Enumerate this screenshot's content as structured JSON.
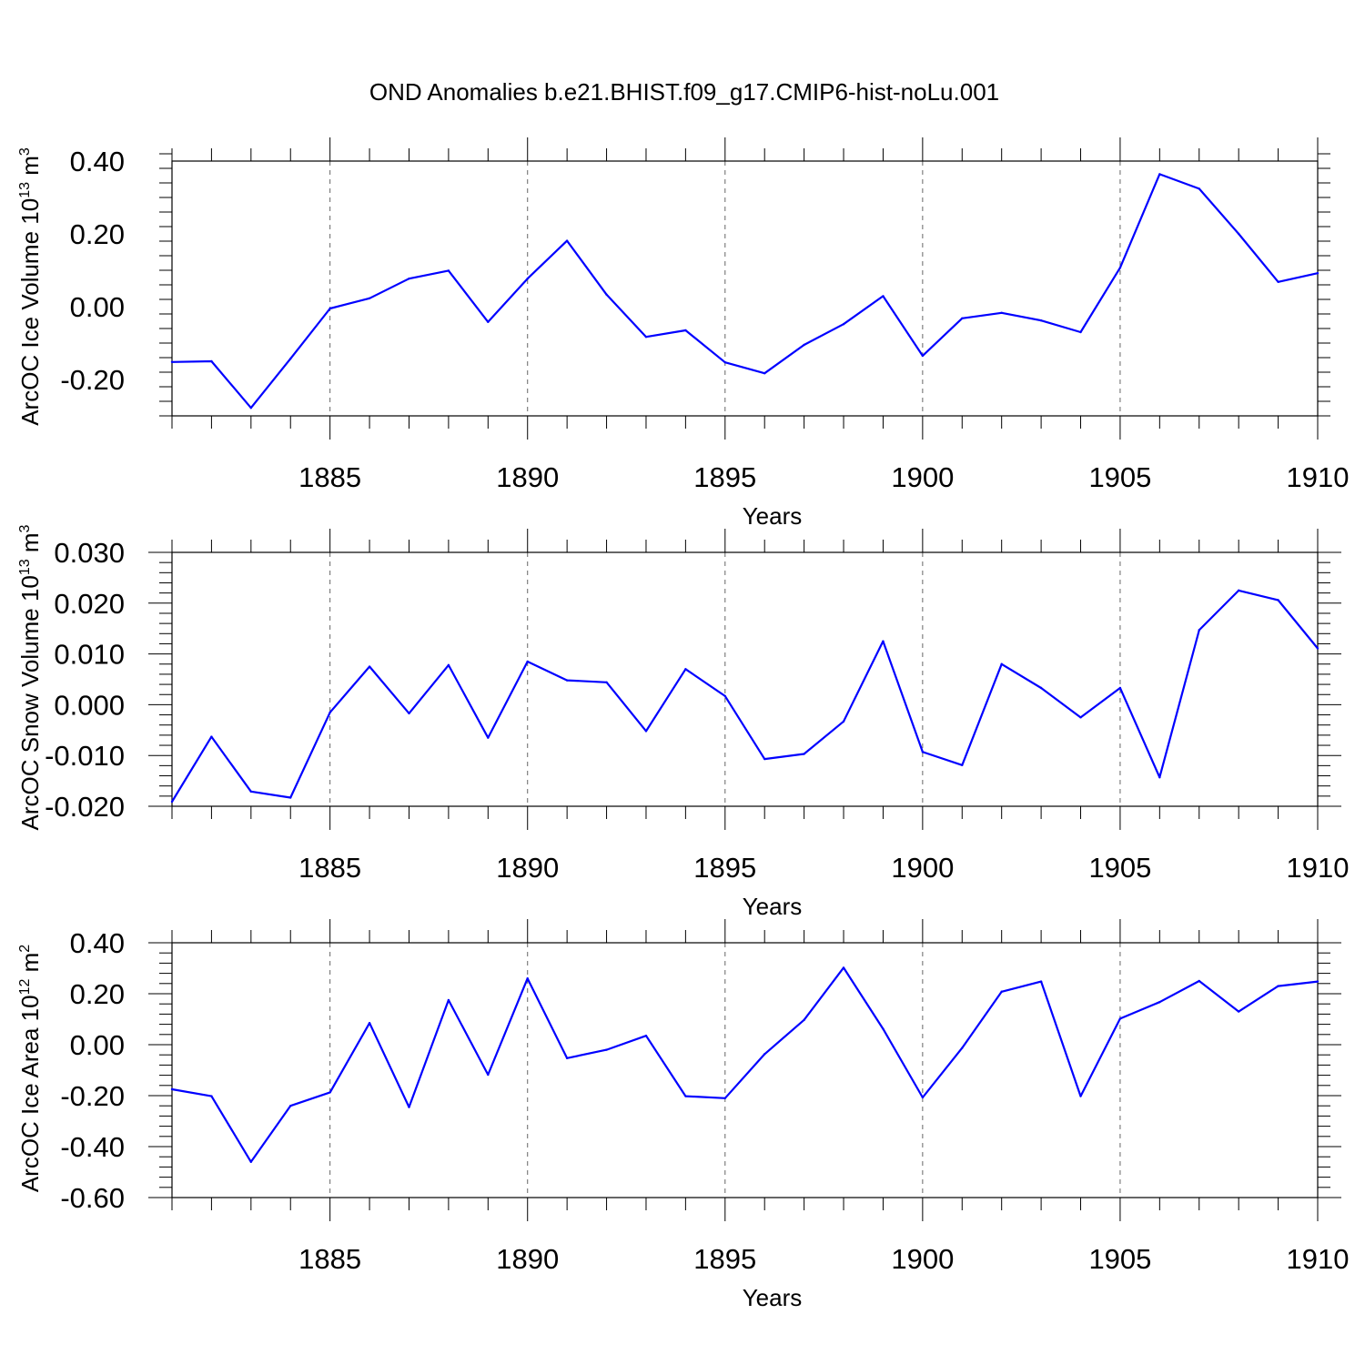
{
  "title": "OND Anomalies b.e21.BHIST.f09_g17.CMIP6-hist-noLu.001",
  "colors": {
    "line": "#0000ff",
    "axis": "#000000",
    "grid": "#666666"
  },
  "chart_data": [
    {
      "type": "line",
      "ylabel": "ArcOC Ice Volume 10",
      "ylabel_exp": "13",
      "ylabel_unit": " m",
      "ylabel_unit_exp": "3",
      "xlabel": "Years",
      "xlim": [
        1881,
        1910
      ],
      "ylim": [
        -0.3,
        0.4
      ],
      "yticks": [
        -0.2,
        0.0,
        0.2,
        0.4
      ],
      "ytick_labels": [
        "-0.20",
        "0.00",
        "0.20",
        "0.40"
      ],
      "xticks": [
        1885,
        1890,
        1895,
        1900,
        1905,
        1910
      ],
      "xtick_labels": [
        "1885",
        "1890",
        "1895",
        "1900",
        "1905",
        "1910"
      ],
      "x": [
        1881,
        1882,
        1883,
        1884,
        1885,
        1886,
        1887,
        1888,
        1889,
        1890,
        1891,
        1892,
        1893,
        1894,
        1895,
        1896,
        1897,
        1898,
        1899,
        1900,
        1901,
        1902,
        1903,
        1904,
        1905,
        1906,
        1907,
        1908,
        1909,
        1910
      ],
      "values": [
        -0.152,
        -0.15,
        -0.278,
        -0.143,
        -0.005,
        0.023,
        0.077,
        0.099,
        -0.042,
        0.077,
        0.181,
        0.033,
        -0.083,
        -0.065,
        -0.153,
        -0.183,
        -0.105,
        -0.048,
        0.029,
        -0.135,
        -0.032,
        -0.017,
        -0.038,
        -0.07,
        0.107,
        0.364,
        0.324,
        0.2,
        0.068,
        0.092
      ],
      "grid": "vertical-dashed"
    },
    {
      "type": "line",
      "ylabel": "ArcOC Snow Volume 10",
      "ylabel_exp": "13",
      "ylabel_unit": " m",
      "ylabel_unit_exp": "3",
      "xlabel": "Years",
      "xlim": [
        1881,
        1910
      ],
      "ylim": [
        -0.02,
        0.03
      ],
      "yticks": [
        -0.02,
        -0.01,
        0.0,
        0.01,
        0.02,
        0.03
      ],
      "ytick_labels": [
        "-0.020",
        "-0.010",
        "0.000",
        "0.010",
        "0.020",
        "0.030"
      ],
      "xticks": [
        1885,
        1890,
        1895,
        1900,
        1905,
        1910
      ],
      "xtick_labels": [
        "1885",
        "1890",
        "1895",
        "1900",
        "1905",
        "1910"
      ],
      "x": [
        1881,
        1882,
        1883,
        1884,
        1885,
        1886,
        1887,
        1888,
        1889,
        1890,
        1891,
        1892,
        1893,
        1894,
        1895,
        1896,
        1897,
        1898,
        1899,
        1900,
        1901,
        1902,
        1903,
        1904,
        1905,
        1906,
        1907,
        1908,
        1909,
        1910
      ],
      "values": [
        -0.0191,
        -0.0063,
        -0.0171,
        -0.0183,
        -0.0015,
        0.0075,
        -0.0017,
        0.0078,
        -0.0065,
        0.0085,
        0.0048,
        0.0044,
        -0.0052,
        0.007,
        0.0017,
        -0.0107,
        -0.0097,
        -0.0033,
        0.0125,
        -0.0093,
        -0.0119,
        0.008,
        0.0033,
        -0.0025,
        0.0033,
        -0.0143,
        0.0147,
        0.0225,
        0.0206,
        0.0111
      ],
      "grid": "vertical-dashed"
    },
    {
      "type": "line",
      "ylabel": "ArcOC Ice Area 10",
      "ylabel_exp": "12",
      "ylabel_unit": " m",
      "ylabel_unit_exp": "2",
      "xlabel": "Years",
      "xlim": [
        1881,
        1910
      ],
      "ylim": [
        -0.6,
        0.4
      ],
      "yticks": [
        -0.6,
        -0.4,
        -0.2,
        0.0,
        0.2,
        0.4
      ],
      "ytick_labels": [
        "-0.60",
        "-0.40",
        "-0.20",
        "0.00",
        "0.20",
        "0.40"
      ],
      "xticks": [
        1885,
        1890,
        1895,
        1900,
        1905,
        1910
      ],
      "xtick_labels": [
        "1885",
        "1890",
        "1895",
        "1900",
        "1905",
        "1910"
      ],
      "x": [
        1881,
        1882,
        1883,
        1884,
        1885,
        1886,
        1887,
        1888,
        1889,
        1890,
        1891,
        1892,
        1893,
        1894,
        1895,
        1896,
        1897,
        1898,
        1899,
        1900,
        1901,
        1902,
        1903,
        1904,
        1905,
        1906,
        1907,
        1908,
        1909,
        1910
      ],
      "values": [
        -0.175,
        -0.202,
        -0.46,
        -0.24,
        -0.187,
        0.085,
        -0.245,
        0.175,
        -0.118,
        0.26,
        -0.053,
        -0.02,
        0.035,
        -0.202,
        -0.21,
        -0.037,
        0.097,
        0.302,
        0.062,
        -0.207,
        -0.013,
        0.208,
        0.248,
        -0.202,
        0.102,
        0.167,
        0.25,
        0.13,
        0.23,
        0.248
      ],
      "grid": "vertical-dashed"
    }
  ]
}
